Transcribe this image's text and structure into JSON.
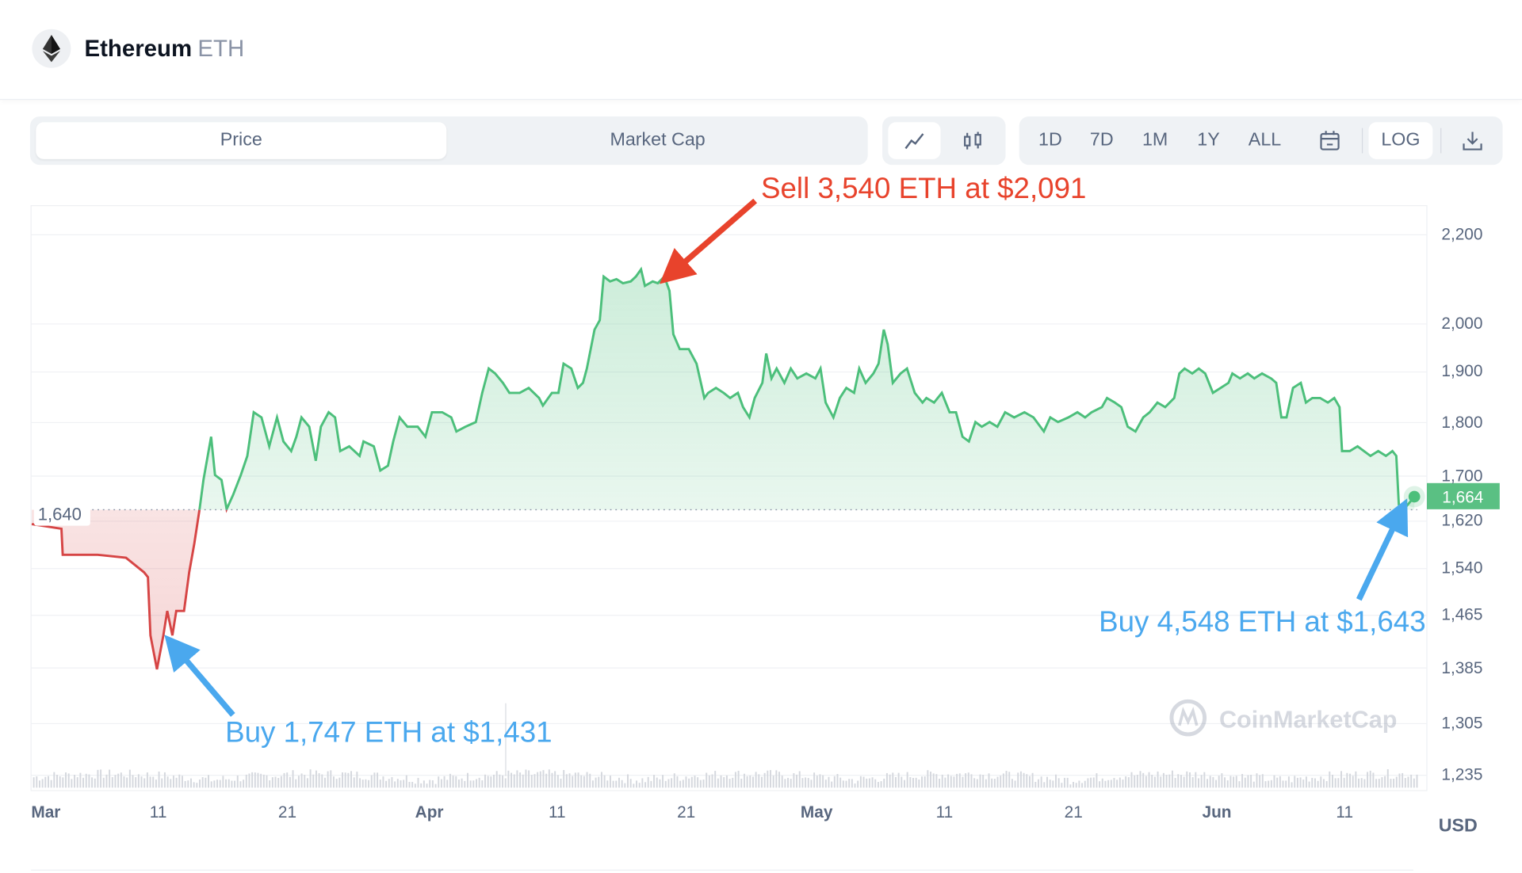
{
  "header": {
    "name": "Ethereum",
    "symbol": "ETH"
  },
  "toolbar": {
    "tabs": [
      "Price",
      "Market Cap"
    ],
    "ranges": [
      "1D",
      "7D",
      "1M",
      "1Y",
      "ALL"
    ],
    "log_label": "LOG"
  },
  "colors": {
    "up": "#4cbf7b",
    "down": "#d64545",
    "annotation_sell": "#e8432c",
    "annotation_buy": "#4aa8ee",
    "current_price_bg": "#5ac083"
  },
  "chart_data": {
    "type": "line",
    "title": "Ethereum ETH Price",
    "currency": "USD",
    "yscale": "log",
    "ylim": [
      1210,
      2260
    ],
    "yticks": [
      "2,200",
      "2,000",
      "1,900",
      "1,800",
      "1,700",
      "1,620",
      "1,540",
      "1,465",
      "1,385",
      "1,305",
      "1,235"
    ],
    "ytick_values": [
      2200,
      2000,
      1900,
      1800,
      1700,
      1620,
      1540,
      1465,
      1385,
      1305,
      1235
    ],
    "xticks": [
      {
        "label": "Mar",
        "day": 1.3,
        "bold": true
      },
      {
        "label": "11",
        "day": 10
      },
      {
        "label": "21",
        "day": 20
      },
      {
        "label": "Apr",
        "day": 31,
        "bold": true
      },
      {
        "label": "11",
        "day": 40.9
      },
      {
        "label": "21",
        "day": 50.9
      },
      {
        "label": "May",
        "day": 61,
        "bold": true
      },
      {
        "label": "11",
        "day": 70.9
      },
      {
        "label": "21",
        "day": 80.9
      },
      {
        "label": "Jun",
        "day": 92,
        "bold": true
      },
      {
        "label": "11",
        "day": 101.9
      }
    ],
    "xunit": "days since Mar 1",
    "baseline": {
      "value": 1640,
      "label": "1,640"
    },
    "current": {
      "value": 1664,
      "label": "1,664"
    },
    "watermark": "CoinMarketCap",
    "points": [
      [
        0.2,
        1615
      ],
      [
        2.5,
        1607
      ],
      [
        2.6,
        1563
      ],
      [
        5.3,
        1563
      ],
      [
        7.5,
        1558
      ],
      [
        8.9,
        1534
      ],
      [
        9.2,
        1526
      ],
      [
        9.4,
        1434
      ],
      [
        9.9,
        1383
      ],
      [
        10.4,
        1434
      ],
      [
        10.7,
        1472
      ],
      [
        11.1,
        1434
      ],
      [
        11.4,
        1472
      ],
      [
        12.0,
        1472
      ],
      [
        12.4,
        1534
      ],
      [
        12.8,
        1582
      ],
      [
        13.2,
        1641
      ],
      [
        13.5,
        1693
      ],
      [
        14.1,
        1773
      ],
      [
        14.4,
        1702
      ],
      [
        14.9,
        1693
      ],
      [
        15.3,
        1641
      ],
      [
        15.8,
        1666
      ],
      [
        16.4,
        1702
      ],
      [
        16.9,
        1737
      ],
      [
        17.4,
        1820
      ],
      [
        18.0,
        1810
      ],
      [
        18.6,
        1755
      ],
      [
        19.2,
        1810
      ],
      [
        19.7,
        1764
      ],
      [
        20.3,
        1746
      ],
      [
        20.7,
        1773
      ],
      [
        21.1,
        1810
      ],
      [
        21.7,
        1792
      ],
      [
        22.2,
        1728
      ],
      [
        22.6,
        1792
      ],
      [
        23.2,
        1820
      ],
      [
        23.7,
        1810
      ],
      [
        24.1,
        1746
      ],
      [
        24.8,
        1755
      ],
      [
        25.6,
        1737
      ],
      [
        25.9,
        1764
      ],
      [
        26.7,
        1755
      ],
      [
        27.2,
        1710
      ],
      [
        27.8,
        1719
      ],
      [
        28.2,
        1764
      ],
      [
        28.7,
        1810
      ],
      [
        29.3,
        1792
      ],
      [
        30.1,
        1792
      ],
      [
        30.7,
        1773
      ],
      [
        31.2,
        1820
      ],
      [
        32.0,
        1820
      ],
      [
        32.7,
        1810
      ],
      [
        33.1,
        1783
      ],
      [
        33.8,
        1792
      ],
      [
        34.6,
        1801
      ],
      [
        35.1,
        1858
      ],
      [
        35.6,
        1907
      ],
      [
        36.1,
        1897
      ],
      [
        36.7,
        1878
      ],
      [
        37.2,
        1858
      ],
      [
        38.0,
        1858
      ],
      [
        38.7,
        1868
      ],
      [
        39.5,
        1848
      ],
      [
        39.8,
        1833
      ],
      [
        40.5,
        1858
      ],
      [
        41.0,
        1858
      ],
      [
        41.4,
        1917
      ],
      [
        42.0,
        1907
      ],
      [
        42.5,
        1868
      ],
      [
        42.9,
        1878
      ],
      [
        43.2,
        1907
      ],
      [
        43.8,
        1988
      ],
      [
        44.2,
        2008
      ],
      [
        44.5,
        2104
      ],
      [
        45.0,
        2093
      ],
      [
        45.5,
        2098
      ],
      [
        46.0,
        2089
      ],
      [
        46.6,
        2093
      ],
      [
        47.0,
        2104
      ],
      [
        47.4,
        2120
      ],
      [
        47.7,
        2083
      ],
      [
        48.3,
        2093
      ],
      [
        48.7,
        2089
      ],
      [
        49.2,
        2104
      ],
      [
        49.6,
        2072
      ],
      [
        49.9,
        1978
      ],
      [
        50.4,
        1947
      ],
      [
        51.1,
        1947
      ],
      [
        51.7,
        1917
      ],
      [
        52.3,
        1848
      ],
      [
        52.6,
        1858
      ],
      [
        53.2,
        1868
      ],
      [
        53.8,
        1858
      ],
      [
        54.3,
        1848
      ],
      [
        54.9,
        1858
      ],
      [
        55.3,
        1830
      ],
      [
        55.8,
        1810
      ],
      [
        56.2,
        1848
      ],
      [
        56.8,
        1878
      ],
      [
        57.1,
        1938
      ],
      [
        57.5,
        1887
      ],
      [
        57.9,
        1907
      ],
      [
        58.5,
        1878
      ],
      [
        59.0,
        1907
      ],
      [
        59.5,
        1887
      ],
      [
        60.2,
        1897
      ],
      [
        60.9,
        1887
      ],
      [
        61.3,
        1907
      ],
      [
        61.7,
        1839
      ],
      [
        62.3,
        1810
      ],
      [
        62.8,
        1848
      ],
      [
        63.3,
        1868
      ],
      [
        63.9,
        1858
      ],
      [
        64.3,
        1907
      ],
      [
        64.8,
        1878
      ],
      [
        65.4,
        1897
      ],
      [
        65.8,
        1917
      ],
      [
        66.2,
        1988
      ],
      [
        66.5,
        1957
      ],
      [
        66.9,
        1878
      ],
      [
        67.5,
        1897
      ],
      [
        68.0,
        1907
      ],
      [
        68.6,
        1858
      ],
      [
        69.2,
        1839
      ],
      [
        69.5,
        1848
      ],
      [
        70.1,
        1839
      ],
      [
        70.7,
        1858
      ],
      [
        71.3,
        1820
      ],
      [
        71.8,
        1820
      ],
      [
        72.3,
        1773
      ],
      [
        72.8,
        1764
      ],
      [
        73.3,
        1801
      ],
      [
        73.8,
        1792
      ],
      [
        74.4,
        1801
      ],
      [
        75.0,
        1792
      ],
      [
        75.6,
        1820
      ],
      [
        76.3,
        1810
      ],
      [
        77.1,
        1820
      ],
      [
        77.8,
        1810
      ],
      [
        78.6,
        1783
      ],
      [
        79.1,
        1810
      ],
      [
        79.7,
        1801
      ],
      [
        80.5,
        1810
      ],
      [
        81.2,
        1820
      ],
      [
        81.8,
        1810
      ],
      [
        82.3,
        1820
      ],
      [
        83.1,
        1830
      ],
      [
        83.5,
        1848
      ],
      [
        84.1,
        1839
      ],
      [
        84.6,
        1830
      ],
      [
        85.1,
        1792
      ],
      [
        85.7,
        1783
      ],
      [
        86.3,
        1810
      ],
      [
        86.8,
        1820
      ],
      [
        87.4,
        1839
      ],
      [
        88.0,
        1830
      ],
      [
        88.7,
        1848
      ],
      [
        89.1,
        1897
      ],
      [
        89.5,
        1907
      ],
      [
        90.1,
        1897
      ],
      [
        90.6,
        1907
      ],
      [
        91.1,
        1897
      ],
      [
        91.7,
        1858
      ],
      [
        92.3,
        1868
      ],
      [
        92.9,
        1878
      ],
      [
        93.2,
        1897
      ],
      [
        93.8,
        1887
      ],
      [
        94.4,
        1897
      ],
      [
        94.9,
        1887
      ],
      [
        95.5,
        1897
      ],
      [
        96.2,
        1887
      ],
      [
        96.6,
        1878
      ],
      [
        97.0,
        1810
      ],
      [
        97.4,
        1810
      ],
      [
        97.9,
        1868
      ],
      [
        98.5,
        1878
      ],
      [
        98.9,
        1839
      ],
      [
        99.4,
        1848
      ],
      [
        100.0,
        1848
      ],
      [
        100.6,
        1839
      ],
      [
        101.1,
        1848
      ],
      [
        101.5,
        1830
      ],
      [
        101.7,
        1746
      ],
      [
        102.3,
        1746
      ],
      [
        102.9,
        1755
      ],
      [
        103.4,
        1746
      ],
      [
        103.9,
        1737
      ],
      [
        104.5,
        1746
      ],
      [
        105.1,
        1737
      ],
      [
        105.6,
        1746
      ],
      [
        105.9,
        1737
      ],
      [
        106.1,
        1649
      ],
      [
        106.5,
        1641
      ],
      [
        106.8,
        1649
      ],
      [
        107.3,
        1663
      ]
    ],
    "annotations": [
      {
        "text": "Sell 3,540 ETH at $2,091",
        "type": "sell",
        "day": 49.2,
        "value": 2091
      },
      {
        "text": "Buy 1,747 ETH at $1,431",
        "type": "buy",
        "day": 10.7,
        "value": 1431
      },
      {
        "text": "Buy 4,548 ETH at $1,643",
        "type": "buy",
        "day": 106.5,
        "value": 1643
      }
    ]
  }
}
